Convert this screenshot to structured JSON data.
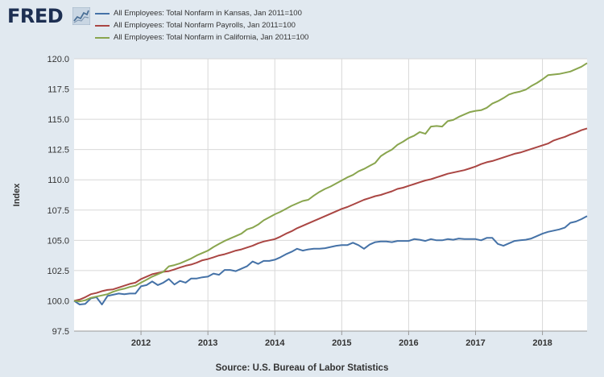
{
  "header": {
    "logo_text": "FRED"
  },
  "source_text": "Source: U.S. Bureau of Labor Statistics",
  "colors": {
    "background": "#e1e9f0",
    "plot": "#ffffff",
    "kansas": "#4572a7",
    "payrolls": "#aa4643",
    "california": "#89a54e"
  },
  "chart_data": {
    "type": "line",
    "title": "",
    "xlabel": "",
    "ylabel": "Index",
    "ylim": [
      97.5,
      120.0
    ],
    "xlim": [
      2011.0,
      2018.667
    ],
    "yticks": [
      "97.5",
      "100.0",
      "102.5",
      "105.0",
      "107.5",
      "110.0",
      "112.5",
      "115.0",
      "117.5",
      "120.0"
    ],
    "xticks": [
      "2012",
      "2013",
      "2014",
      "2015",
      "2016",
      "2017",
      "2018"
    ],
    "grid": true,
    "legend_position": "top",
    "series": [
      {
        "name": "All Employees: Total Nonfarm in Kansas, Jan 2011=100",
        "key": "kansas",
        "x": [
          2011.0,
          2011.083,
          2011.167,
          2011.25,
          2011.333,
          2011.417,
          2011.5,
          2011.583,
          2011.667,
          2011.75,
          2011.833,
          2011.917,
          2012.0,
          2012.083,
          2012.167,
          2012.25,
          2012.333,
          2012.417,
          2012.5,
          2012.583,
          2012.667,
          2012.75,
          2012.833,
          2012.917,
          2013.0,
          2013.083,
          2013.167,
          2013.25,
          2013.333,
          2013.417,
          2013.5,
          2013.583,
          2013.667,
          2013.75,
          2013.833,
          2013.917,
          2014.0,
          2014.083,
          2014.167,
          2014.25,
          2014.333,
          2014.417,
          2014.5,
          2014.583,
          2014.667,
          2014.75,
          2014.833,
          2014.917,
          2015.0,
          2015.083,
          2015.167,
          2015.25,
          2015.333,
          2015.417,
          2015.5,
          2015.583,
          2015.667,
          2015.75,
          2015.833,
          2015.917,
          2016.0,
          2016.083,
          2016.167,
          2016.25,
          2016.333,
          2016.417,
          2016.5,
          2016.583,
          2016.667,
          2016.75,
          2016.833,
          2016.917,
          2017.0,
          2017.083,
          2017.167,
          2017.25,
          2017.333,
          2017.417,
          2017.5,
          2017.583,
          2017.667,
          2017.75,
          2017.833,
          2017.917,
          2018.0,
          2018.083,
          2018.167,
          2018.25,
          2018.333,
          2018.417,
          2018.5,
          2018.583,
          2018.667
        ],
        "values": [
          100.0,
          99.7,
          99.75,
          100.2,
          100.3,
          99.7,
          100.4,
          100.5,
          100.6,
          100.55,
          100.6,
          100.6,
          101.2,
          101.3,
          101.6,
          101.3,
          101.5,
          101.8,
          101.35,
          101.65,
          101.5,
          101.85,
          101.85,
          101.95,
          102.0,
          102.25,
          102.15,
          102.55,
          102.55,
          102.45,
          102.65,
          102.85,
          103.25,
          103.05,
          103.3,
          103.3,
          103.4,
          103.6,
          103.85,
          104.05,
          104.3,
          104.15,
          104.25,
          104.3,
          104.3,
          104.35,
          104.45,
          104.55,
          104.6,
          104.6,
          104.8,
          104.6,
          104.3,
          104.65,
          104.85,
          104.9,
          104.9,
          104.85,
          104.95,
          104.95,
          104.95,
          105.1,
          105.05,
          104.95,
          105.1,
          105.0,
          105.0,
          105.1,
          105.05,
          105.15,
          105.1,
          105.1,
          105.1,
          105.0,
          105.2,
          105.2,
          104.7,
          104.55,
          104.75,
          104.95,
          105.0,
          105.05,
          105.15,
          105.35,
          105.55,
          105.7,
          105.8,
          105.9,
          106.05,
          106.45,
          106.55,
          106.75,
          107.0
        ]
      },
      {
        "name": "All Employees: Total Nonfarm Payrolls, Jan 2011=100",
        "key": "payrolls",
        "x": [
          2011.0,
          2011.083,
          2011.167,
          2011.25,
          2011.333,
          2011.417,
          2011.5,
          2011.583,
          2011.667,
          2011.75,
          2011.833,
          2011.917,
          2012.0,
          2012.083,
          2012.167,
          2012.25,
          2012.333,
          2012.417,
          2012.5,
          2012.583,
          2012.667,
          2012.75,
          2012.833,
          2012.917,
          2013.0,
          2013.083,
          2013.167,
          2013.25,
          2013.333,
          2013.417,
          2013.5,
          2013.583,
          2013.667,
          2013.75,
          2013.833,
          2013.917,
          2014.0,
          2014.083,
          2014.167,
          2014.25,
          2014.333,
          2014.417,
          2014.5,
          2014.583,
          2014.667,
          2014.75,
          2014.833,
          2014.917,
          2015.0,
          2015.083,
          2015.167,
          2015.25,
          2015.333,
          2015.417,
          2015.5,
          2015.583,
          2015.667,
          2015.75,
          2015.833,
          2015.917,
          2016.0,
          2016.083,
          2016.167,
          2016.25,
          2016.333,
          2016.417,
          2016.5,
          2016.583,
          2016.667,
          2016.75,
          2016.833,
          2016.917,
          2017.0,
          2017.083,
          2017.167,
          2017.25,
          2017.333,
          2017.417,
          2017.5,
          2017.583,
          2017.667,
          2017.75,
          2017.833,
          2017.917,
          2018.0,
          2018.083,
          2018.167,
          2018.25,
          2018.333,
          2018.417,
          2018.5,
          2018.583,
          2018.667
        ],
        "values": [
          100.0,
          100.1,
          100.3,
          100.55,
          100.65,
          100.8,
          100.9,
          100.95,
          101.1,
          101.25,
          101.4,
          101.5,
          101.8,
          102.0,
          102.2,
          102.3,
          102.4,
          102.45,
          102.6,
          102.75,
          102.9,
          103.0,
          103.15,
          103.35,
          103.45,
          103.6,
          103.75,
          103.85,
          104.0,
          104.15,
          104.25,
          104.4,
          104.55,
          104.75,
          104.9,
          105.0,
          105.1,
          105.3,
          105.55,
          105.75,
          106.0,
          106.2,
          106.4,
          106.6,
          106.8,
          107.0,
          107.2,
          107.4,
          107.6,
          107.75,
          107.95,
          108.15,
          108.35,
          108.5,
          108.65,
          108.75,
          108.9,
          109.05,
          109.25,
          109.35,
          109.5,
          109.65,
          109.8,
          109.95,
          110.05,
          110.2,
          110.35,
          110.5,
          110.6,
          110.7,
          110.8,
          110.95,
          111.1,
          111.3,
          111.45,
          111.55,
          111.7,
          111.85,
          112.0,
          112.15,
          112.25,
          112.4,
          112.55,
          112.7,
          112.85,
          113.0,
          113.25,
          113.4,
          113.55,
          113.75,
          113.9,
          114.1,
          114.25
        ]
      },
      {
        "name": "All Employees: Total Nonfarm in California, Jan 2011=100",
        "key": "california",
        "x": [
          2011.0,
          2011.083,
          2011.167,
          2011.25,
          2011.333,
          2011.417,
          2011.5,
          2011.583,
          2011.667,
          2011.75,
          2011.833,
          2011.917,
          2012.0,
          2012.083,
          2012.167,
          2012.25,
          2012.333,
          2012.417,
          2012.5,
          2012.583,
          2012.667,
          2012.75,
          2012.833,
          2012.917,
          2013.0,
          2013.083,
          2013.167,
          2013.25,
          2013.333,
          2013.417,
          2013.5,
          2013.583,
          2013.667,
          2013.75,
          2013.833,
          2013.917,
          2014.0,
          2014.083,
          2014.167,
          2014.25,
          2014.333,
          2014.417,
          2014.5,
          2014.583,
          2014.667,
          2014.75,
          2014.833,
          2014.917,
          2015.0,
          2015.083,
          2015.167,
          2015.25,
          2015.333,
          2015.417,
          2015.5,
          2015.583,
          2015.667,
          2015.75,
          2015.833,
          2015.917,
          2016.0,
          2016.083,
          2016.167,
          2016.25,
          2016.333,
          2016.417,
          2016.5,
          2016.583,
          2016.667,
          2016.75,
          2016.833,
          2016.917,
          2017.0,
          2017.083,
          2017.167,
          2017.25,
          2017.333,
          2017.417,
          2017.5,
          2017.583,
          2017.667,
          2017.75,
          2017.833,
          2017.917,
          2018.0,
          2018.083,
          2018.167,
          2018.25,
          2018.333,
          2018.417,
          2018.5,
          2018.583,
          2018.667
        ],
        "values": [
          100.0,
          99.95,
          100.05,
          100.25,
          100.35,
          100.45,
          100.55,
          100.75,
          100.9,
          101.0,
          101.15,
          101.25,
          101.5,
          101.75,
          102.0,
          102.2,
          102.4,
          102.85,
          102.95,
          103.1,
          103.3,
          103.5,
          103.75,
          103.95,
          104.15,
          104.45,
          104.7,
          104.95,
          105.15,
          105.35,
          105.55,
          105.9,
          106.05,
          106.3,
          106.65,
          106.9,
          107.15,
          107.35,
          107.6,
          107.85,
          108.05,
          108.25,
          108.35,
          108.7,
          109.0,
          109.25,
          109.45,
          109.7,
          109.95,
          110.2,
          110.4,
          110.7,
          110.9,
          111.15,
          111.4,
          111.95,
          112.25,
          112.5,
          112.9,
          113.15,
          113.45,
          113.65,
          113.95,
          113.8,
          114.4,
          114.45,
          114.4,
          114.85,
          114.95,
          115.2,
          115.4,
          115.6,
          115.7,
          115.75,
          115.95,
          116.3,
          116.5,
          116.75,
          117.05,
          117.2,
          117.3,
          117.45,
          117.75,
          118.0,
          118.3,
          118.65,
          118.7,
          118.75,
          118.85,
          118.95,
          119.15,
          119.35,
          119.65
        ]
      }
    ]
  }
}
